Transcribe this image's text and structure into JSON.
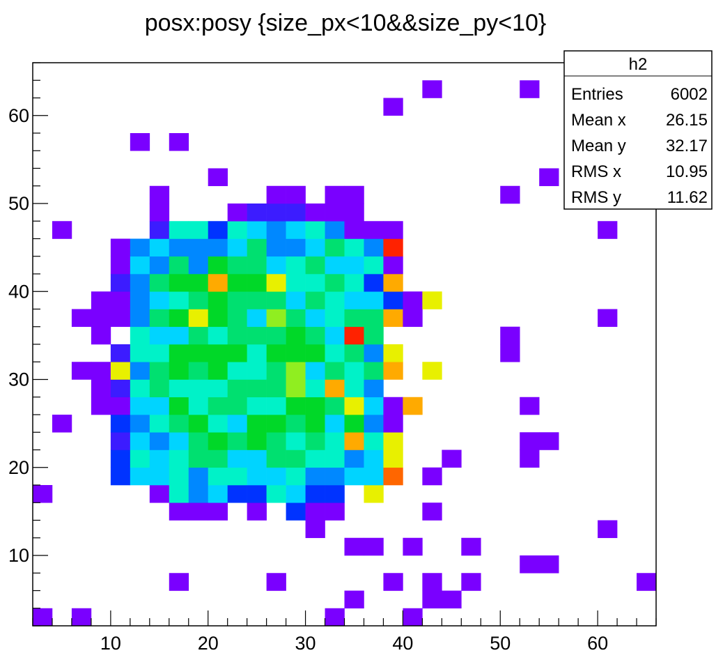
{
  "chart_data": {
    "type": "heatmap",
    "title": "posx:posy {size_px<10&&size_py<10}",
    "xlabel": "",
    "ylabel": "",
    "xlim": [
      2,
      66
    ],
    "ylim": [
      2,
      66
    ],
    "bin_width": 2,
    "x_ticks": [
      10,
      20,
      30,
      40,
      50,
      60
    ],
    "y_ticks": [
      10,
      20,
      30,
      40,
      50,
      60
    ],
    "grid": false,
    "legend": "none",
    "palette": [
      "#7a00ff",
      "#3c1cff",
      "#0033ff",
      "#0088ff",
      "#00d4ff",
      "#00f2c8",
      "#00e070",
      "#00d828",
      "#90ee20",
      "#e8f000",
      "#ffaa00",
      "#ff6600",
      "#ff2200"
    ],
    "stats_box": {
      "name": "h2",
      "rows": [
        {
          "label": "Entries",
          "value": "6002"
        },
        {
          "label": "Mean x",
          "value": "26.15"
        },
        {
          "label": "Mean y",
          "value": "32.17"
        },
        {
          "label": "RMS x",
          "value": "10.95"
        },
        {
          "label": "RMS y",
          "value": "11.62"
        }
      ]
    },
    "gap_x": [
      35,
      37
    ],
    "peak_bins": [
      {
        "x": 38,
        "y": 44,
        "level": 12
      },
      {
        "x": 34,
        "y": 34,
        "level": 12
      },
      {
        "x": 38,
        "y": 36,
        "level": 10
      },
      {
        "x": 38,
        "y": 40,
        "level": 10
      },
      {
        "x": 38,
        "y": 30,
        "level": 10
      },
      {
        "x": 38,
        "y": 18,
        "level": 11
      },
      {
        "x": 40,
        "y": 26,
        "level": 10
      },
      {
        "x": 32,
        "y": 28,
        "level": 10
      },
      {
        "x": 20,
        "y": 40,
        "level": 10
      },
      {
        "x": 34,
        "y": 22,
        "level": 10
      },
      {
        "x": 26,
        "y": 40,
        "level": 9
      },
      {
        "x": 18,
        "y": 36,
        "level": 9
      },
      {
        "x": 42,
        "y": 30,
        "level": 9
      },
      {
        "x": 38,
        "y": 20,
        "level": 9
      },
      {
        "x": 10,
        "y": 30,
        "level": 9
      },
      {
        "x": 34,
        "y": 26,
        "level": 9
      },
      {
        "x": 42,
        "y": 38,
        "level": 9
      },
      {
        "x": 38,
        "y": 32,
        "level": 9
      },
      {
        "x": 38,
        "y": 22,
        "level": 9
      },
      {
        "x": 36,
        "y": 16,
        "level": 9
      }
    ]
  }
}
